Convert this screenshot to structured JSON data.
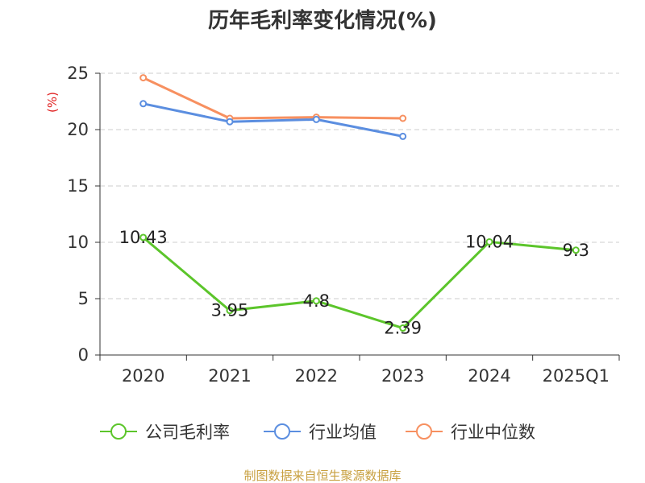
{
  "chart_data": {
    "type": "line",
    "title": "历年毛利率变化情况(%)",
    "ylabel": "(%)",
    "ylim": [
      0,
      25
    ],
    "yticks": [
      0,
      5,
      10,
      15,
      20,
      25
    ],
    "categories": [
      "2020",
      "2021",
      "2022",
      "2023",
      "2024",
      "2025Q1"
    ],
    "grid": "horizontal dashed",
    "legend_position": "bottom",
    "series": [
      {
        "name": "公司毛利率",
        "color": "#5cc52b",
        "values": [
          10.43,
          3.95,
          4.8,
          2.39,
          10.04,
          9.3
        ],
        "labels": [
          "10.43",
          "3.95",
          "4.8",
          "2.39",
          "10.04",
          "9.3"
        ]
      },
      {
        "name": "行业均值",
        "color": "#5b8ee0",
        "values": [
          22.3,
          20.7,
          20.9,
          19.4,
          null,
          null
        ]
      },
      {
        "name": "行业中位数",
        "color": "#f79060",
        "values": [
          24.6,
          21.0,
          21.1,
          21.0,
          null,
          null
        ]
      }
    ]
  },
  "footer": {
    "source": "制图数据来自恒生聚源数据库",
    "source_color": "#c8a040"
  },
  "colors": {
    "ylabel": "#e02020",
    "axis": "#333333",
    "grid": "#cccccc"
  }
}
